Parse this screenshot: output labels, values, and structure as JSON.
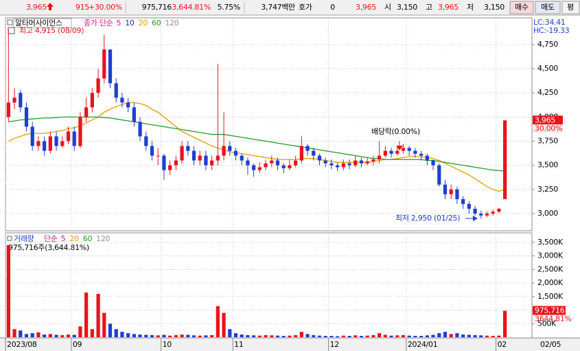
{
  "header": {
    "price": "3,965",
    "change": "915",
    "change_pct": "+30.00%",
    "volume": "975,716",
    "volume_ratio": "3,644.81%",
    "turnover": "5.75%",
    "amount": "3,747백만",
    "quote_label": "호가",
    "quote": "0",
    "ask": "3,965",
    "open_label": "시",
    "open": "3,150",
    "high_label": "고",
    "high": "3,965",
    "low_label": "저",
    "low": "3,150",
    "buttons": [
      "매수",
      "매도",
      "평"
    ]
  },
  "chart_data": [
    {
      "type": "candlestick",
      "title": "알타머사이언스",
      "indicator_label": "종가 단순",
      "legend": [
        {
          "label": "5",
          "color": "#d0208a"
        },
        {
          "label": "10",
          "color": "#1a2fb0"
        },
        {
          "label": "20",
          "color": "#e0a000"
        },
        {
          "label": "60",
          "color": "#2a9a2a"
        },
        {
          "label": "120",
          "color": "#909090"
        }
      ],
      "max_note": "최고 4,915 (08/09)",
      "lc": "LC:34.41",
      "hc": "HC:-19.33",
      "last_label": "3,965",
      "last_pct": "30.00%",
      "annotations": [
        "배당락(0.00%)",
        "최저 2,950 (01/25)"
      ],
      "ylim": [
        2843,
        5013
      ],
      "yticks": [
        {
          "value": 3000,
          "label": "3,000"
        },
        {
          "value": 3250,
          "label": "3,250"
        },
        {
          "value": 3500,
          "label": "3,500"
        },
        {
          "value": 3750,
          "label": "3,750"
        },
        {
          "value": 4000,
          "label": "4,000"
        },
        {
          "value": 4250,
          "label": "4,250"
        },
        {
          "value": 4500,
          "label": "4,500"
        },
        {
          "value": 4750,
          "label": "4,750"
        }
      ],
      "up_color": "#e8141c",
      "down_color": "#1e3fd0",
      "open": [
        4000,
        4150,
        4250,
        4100,
        3900,
        3700,
        3750,
        3650,
        3800,
        3700,
        3750,
        3850,
        3700,
        4000,
        4100,
        4250,
        4400,
        4700,
        4350,
        4200,
        4150,
        4100,
        3950,
        3800,
        3700,
        3600,
        3600,
        3450,
        3500,
        3550,
        3700,
        3650,
        3550,
        3600,
        3500,
        3550,
        3600,
        3700,
        3650,
        3600,
        3550,
        3500,
        3450,
        3480,
        3520,
        3550,
        3500,
        3470,
        3500,
        3550,
        3700,
        3650,
        3600,
        3550,
        3520,
        3500,
        3480,
        3520,
        3500,
        3550,
        3520,
        3540,
        3560,
        3600,
        3650,
        3620,
        3650,
        3680,
        3650,
        3620,
        3600,
        3550,
        3500,
        3300,
        3200,
        3250,
        3150,
        3100,
        3050,
        3000,
        2980,
        3000,
        3020,
        3150
      ],
      "high": [
        4915,
        4300,
        4280,
        4150,
        3950,
        3800,
        3800,
        3850,
        3850,
        3800,
        3900,
        3900,
        4050,
        4200,
        4300,
        4500,
        4850,
        4700,
        4400,
        4250,
        4200,
        4150,
        4000,
        3850,
        3750,
        3680,
        3620,
        3550,
        3600,
        3750,
        3750,
        3700,
        3650,
        3650,
        3600,
        4550,
        4050,
        3750,
        3680,
        3620,
        3580,
        3520,
        3530,
        3560,
        3600,
        3580,
        3520,
        3560,
        3600,
        3800,
        3720,
        3680,
        3620,
        3580,
        3560,
        3530,
        3560,
        3560,
        3600,
        3580,
        3580,
        3600,
        3750,
        3700,
        3680,
        3700,
        3720,
        3700,
        3680,
        3650,
        3620,
        3560,
        3520,
        3350,
        3300,
        3280,
        3180,
        3130,
        3080,
        3030,
        3020,
        3040,
        3060,
        3965
      ],
      "low": [
        3950,
        4080,
        4050,
        3850,
        3650,
        3650,
        3600,
        3620,
        3650,
        3680,
        3720,
        3650,
        3680,
        3950,
        4050,
        4200,
        4350,
        4300,
        4150,
        4100,
        4050,
        3900,
        3750,
        3650,
        3550,
        3500,
        3350,
        3400,
        3450,
        3520,
        3600,
        3500,
        3500,
        3450,
        3450,
        3500,
        3550,
        3600,
        3550,
        3500,
        3400,
        3380,
        3420,
        3450,
        3480,
        3450,
        3420,
        3450,
        3480,
        3520,
        3600,
        3550,
        3500,
        3480,
        3460,
        3440,
        3450,
        3460,
        3480,
        3480,
        3500,
        3500,
        3520,
        3580,
        3580,
        3600,
        3620,
        3600,
        3580,
        3550,
        3500,
        3450,
        3280,
        3150,
        3150,
        3100,
        3050,
        3000,
        2980,
        2950,
        2960,
        2980,
        3000,
        3150
      ],
      "close": [
        4150,
        4200,
        4100,
        3900,
        3700,
        3750,
        3650,
        3800,
        3700,
        3750,
        3850,
        3700,
        4000,
        4100,
        4250,
        4400,
        4700,
        4350,
        4200,
        4150,
        4100,
        3950,
        3800,
        3700,
        3600,
        3600,
        3450,
        3500,
        3550,
        3700,
        3650,
        3550,
        3600,
        3500,
        3550,
        3600,
        3700,
        3650,
        3600,
        3550,
        3500,
        3450,
        3480,
        3520,
        3550,
        3500,
        3470,
        3500,
        3550,
        3700,
        3650,
        3600,
        3550,
        3520,
        3500,
        3480,
        3520,
        3500,
        3550,
        3520,
        3540,
        3560,
        3600,
        3650,
        3620,
        3650,
        3680,
        3650,
        3620,
        3600,
        3550,
        3500,
        3300,
        3200,
        3250,
        3150,
        3100,
        3050,
        3000,
        2980,
        3000,
        3020,
        3050,
        3965
      ],
      "series": [
        {
          "color": "#e0a000",
          "values": [
            3750,
            3780,
            3800,
            3820,
            3830,
            3830,
            3830,
            3840,
            3850,
            3860,
            3880,
            3890,
            3910,
            3940,
            3970,
            4000,
            4050,
            4080,
            4110,
            4130,
            4150,
            4150,
            4140,
            4120,
            4080,
            4050,
            4000,
            3950,
            3900,
            3850,
            3820,
            3790,
            3760,
            3730,
            3700,
            3680,
            3660,
            3640,
            3630,
            3620,
            3610,
            3600,
            3590,
            3580,
            3570,
            3560,
            3560,
            3560,
            3560,
            3570,
            3570,
            3570,
            3560,
            3550,
            3540,
            3530,
            3530,
            3530,
            3530,
            3530,
            3530,
            3540,
            3550,
            3560,
            3560,
            3570,
            3580,
            3590,
            3590,
            3590,
            3580,
            3570,
            3550,
            3520,
            3490,
            3460,
            3430,
            3400,
            3360,
            3320,
            3280,
            3250,
            3230,
            3250
          ]
        },
        {
          "color": "#2a9a2a",
          "values": [
            3950,
            3960,
            3970,
            3975,
            3980,
            3985,
            3990,
            3990,
            3995,
            4000,
            4000,
            4000,
            4000,
            4000,
            4000,
            4000,
            3995,
            3990,
            3980,
            3970,
            3960,
            3950,
            3940,
            3930,
            3920,
            3910,
            3900,
            3890,
            3880,
            3870,
            3860,
            3850,
            3840,
            3830,
            3820,
            3820,
            3820,
            3810,
            3800,
            3790,
            3780,
            3770,
            3760,
            3750,
            3740,
            3730,
            3720,
            3710,
            3700,
            3690,
            3680,
            3670,
            3660,
            3650,
            3640,
            3630,
            3620,
            3610,
            3600,
            3590,
            3580,
            3570,
            3570,
            3560,
            3560,
            3560,
            3560,
            3560,
            3560,
            3560,
            3550,
            3550,
            3540,
            3530,
            3520,
            3510,
            3500,
            3490,
            3480,
            3470,
            3460,
            3450,
            3445,
            3440
          ]
        }
      ]
    },
    {
      "type": "bar",
      "title": "거래량",
      "indicator_label": "단순",
      "legend": [
        {
          "label": "5",
          "color": "#d0208a"
        },
        {
          "label": "20",
          "color": "#e0a000"
        },
        {
          "label": "60",
          "color": "#2a9a2a"
        },
        {
          "label": "120",
          "color": "#909090"
        }
      ],
      "note": "975,716주(3,644.81%)",
      "last_label": "975,716",
      "last_pct": "3644.81%",
      "cursor_label": "02/05",
      "ylim": [
        0,
        3800000
      ],
      "yticks": [
        {
          "value": 500000,
          "label": "500K"
        },
        {
          "value": 1000000,
          "label": "1,000K"
        },
        {
          "value": 1500000,
          "label": "1,500K"
        },
        {
          "value": 2000000,
          "label": "2,000K"
        },
        {
          "value": 2500000,
          "label": "2,500K"
        },
        {
          "value": 3000000,
          "label": "3,000K"
        },
        {
          "value": 3500000,
          "label": "3,500K"
        }
      ],
      "categories": [
        "2023/08",
        null,
        null,
        null,
        null,
        null,
        null,
        null,
        null,
        null,
        null,
        "09",
        null,
        null,
        null,
        null,
        null,
        null,
        null,
        null,
        null,
        null,
        null,
        null,
        null,
        null,
        "10",
        null,
        null,
        null,
        null,
        null,
        null,
        null,
        null,
        null,
        null,
        null,
        "11",
        null,
        null,
        null,
        null,
        null,
        null,
        null,
        null,
        null,
        null,
        null,
        null,
        null,
        null,
        null,
        "12",
        null,
        null,
        null,
        null,
        null,
        null,
        null,
        null,
        null,
        null,
        null,
        null,
        "2024/01",
        null,
        null,
        null,
        null,
        null,
        null,
        null,
        null,
        null,
        null,
        null,
        null,
        null,
        null,
        "02",
        null
      ],
      "values": [
        3400000,
        300000,
        250000,
        120000,
        150000,
        180000,
        100000,
        120000,
        90000,
        80000,
        100000,
        90000,
        400000,
        1650000,
        300000,
        1600000,
        900000,
        500000,
        300000,
        200000,
        150000,
        120000,
        100000,
        90000,
        80000,
        70000,
        90000,
        60000,
        80000,
        100000,
        90000,
        70000,
        60000,
        70000,
        80000,
        1150000,
        900000,
        300000,
        150000,
        100000,
        80000,
        70000,
        60000,
        80000,
        70000,
        60000,
        50000,
        60000,
        80000,
        200000,
        120000,
        80000,
        60000,
        50000,
        50000,
        40000,
        60000,
        50000,
        70000,
        50000,
        60000,
        80000,
        150000,
        90000,
        60000,
        70000,
        80000,
        60000,
        50000,
        50000,
        70000,
        90000,
        150000,
        200000,
        120000,
        150000,
        100000,
        90000,
        80000,
        70000,
        60000,
        50000,
        60000,
        975716
      ]
    }
  ]
}
